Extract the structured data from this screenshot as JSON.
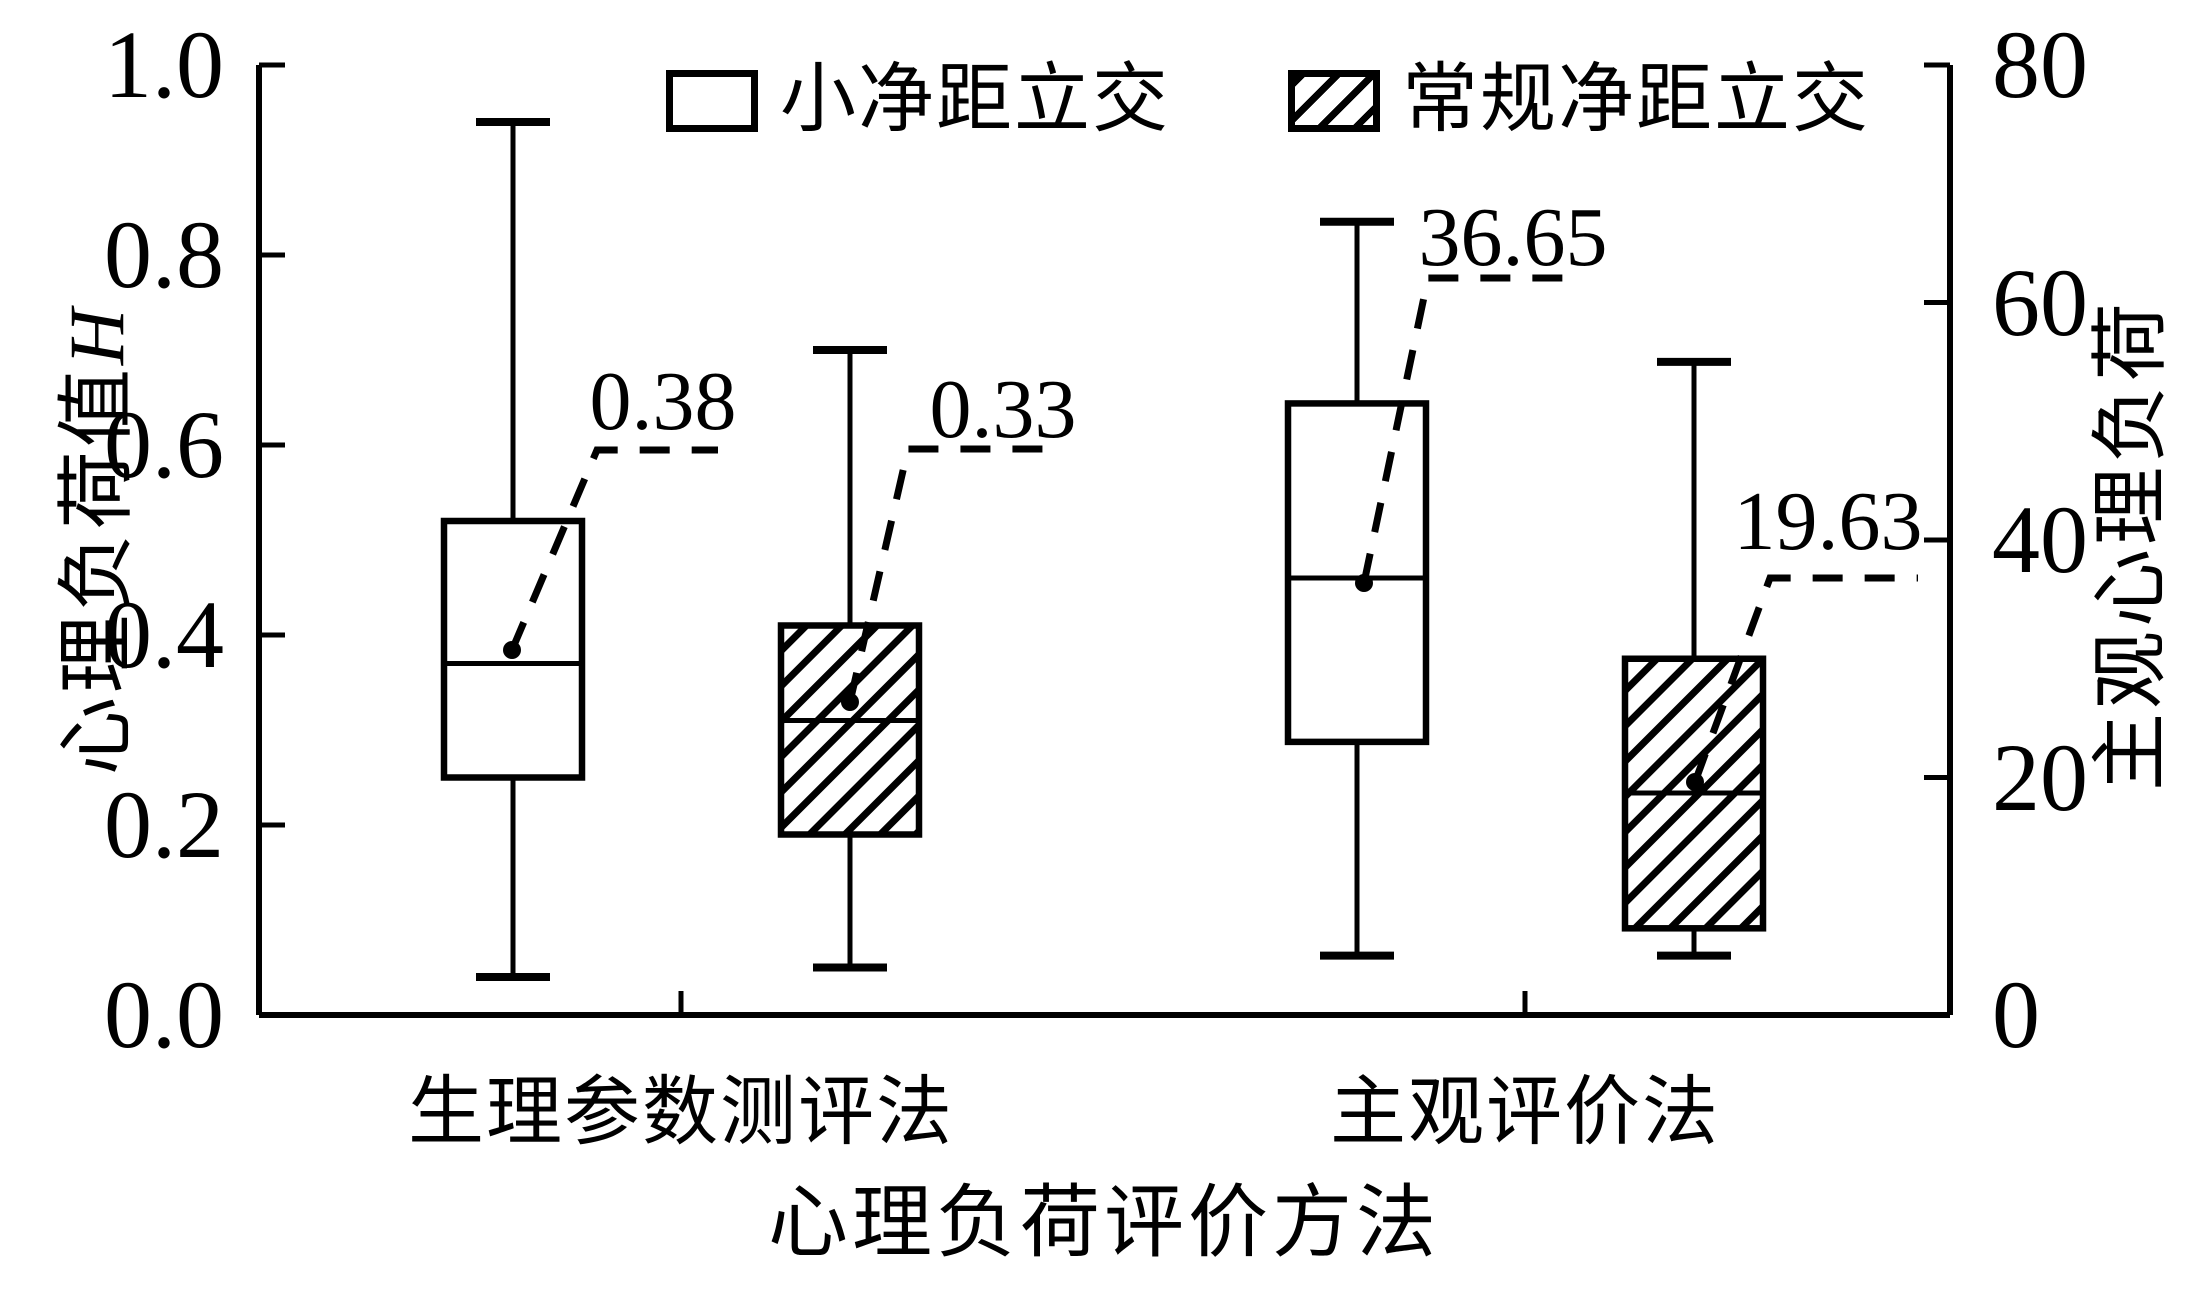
{
  "colors": {
    "ink": "#000000",
    "background": "#ffffff"
  },
  "legend": {
    "items": [
      {
        "label": "小净距立交",
        "marker": "open-box"
      },
      {
        "label": "常规净距立交",
        "marker": "hatched-box"
      }
    ]
  },
  "axes": {
    "left": {
      "title_text": "心理负荷值",
      "title_var": "H",
      "tick_labels": [
        "1.0",
        "0.8",
        "0.6",
        "0.4",
        "0.2",
        "0.0"
      ]
    },
    "right": {
      "title": "主观心理负荷",
      "tick_labels": [
        "80",
        "60",
        "40",
        "20",
        "0"
      ]
    },
    "x": {
      "title": "心理负荷评价方法",
      "categories": [
        "生理参数测评法",
        "主观评价法"
      ]
    }
  },
  "chart_data": {
    "type": "boxplot",
    "title": "",
    "xlabel": "心理负荷评价方法",
    "categories": [
      "生理参数测评法",
      "主观评价法"
    ],
    "left_axis": {
      "label": "心理负荷值H",
      "range": [
        0,
        1
      ],
      "ticks": [
        1.0,
        0.8,
        0.6,
        0.4,
        0.2,
        0.0
      ]
    },
    "right_axis": {
      "label": "主观心理负荷",
      "range": [
        0,
        80
      ],
      "ticks": [
        80,
        60,
        40,
        20,
        0
      ]
    },
    "grid": false,
    "legend_position": "top",
    "series": [
      {
        "name": "小净距立交",
        "fill": "open",
        "boxes": [
          {
            "category": "生理参数测评法",
            "axis": "left",
            "whisker_low": 0.04,
            "q1": 0.25,
            "median": 0.37,
            "q3": 0.52,
            "whisker_high": 0.94,
            "mean": 0.38,
            "annotation": "0.38"
          },
          {
            "category": "主观评价法",
            "axis": "right",
            "whisker_low": 5,
            "q1": 23,
            "median": 36.8,
            "q3": 51.5,
            "whisker_high": 66.8,
            "mean": 36.65,
            "annotation": "36.65"
          }
        ]
      },
      {
        "name": "常规净距立交",
        "fill": "hatched",
        "boxes": [
          {
            "category": "生理参数测评法",
            "axis": "left",
            "whisker_low": 0.05,
            "q1": 0.19,
            "median": 0.31,
            "q3": 0.41,
            "whisker_high": 0.7,
            "mean": 0.33,
            "annotation": "0.33"
          },
          {
            "category": "主观评价法",
            "axis": "right",
            "whisker_low": 5,
            "q1": 7.3,
            "median": 18.7,
            "q3": 30,
            "whisker_high": 55,
            "mean": 19.63,
            "annotation": "19.63"
          }
        ]
      }
    ]
  }
}
